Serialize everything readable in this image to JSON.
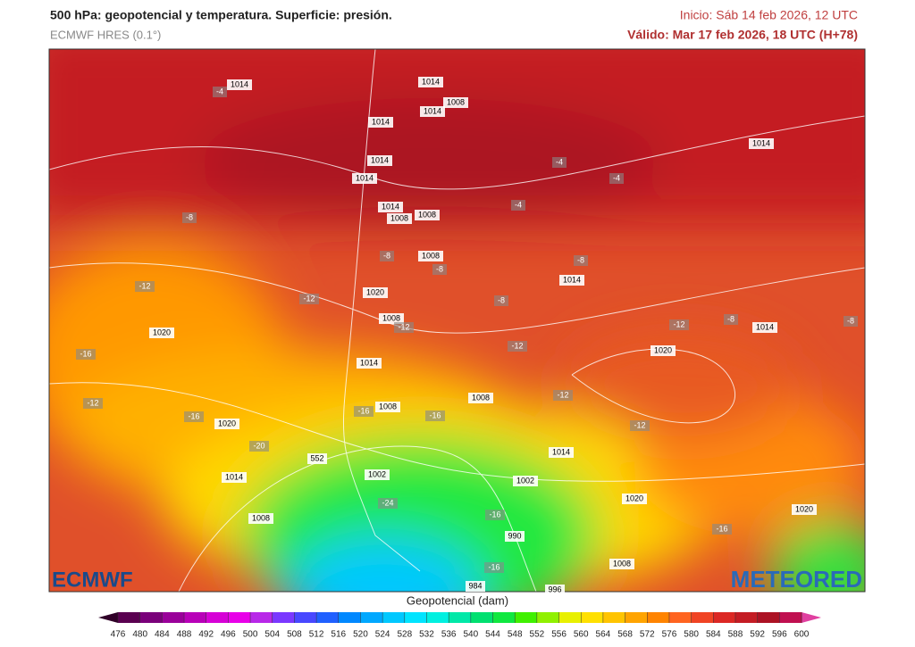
{
  "header": {
    "title": "500 hPa: geopotencial y temperatura. Superficie: presión.",
    "subtitle": "ECMWF HRES (0.1°)",
    "init": "Inicio: Sáb 14 feb 2026, 12 UTC",
    "valid": "Válido: Mar 17 feb 2026, 18 UTC (H+78)"
  },
  "map": {
    "labels": [
      "1014",
      "-4",
      "1014",
      "1014",
      "1008",
      "1014",
      "1014",
      "1014",
      "1014",
      "-4",
      "-4",
      "-4",
      "-8",
      "1014",
      "1008",
      "1008",
      "-8",
      "1008",
      "-8",
      "-8",
      "1014",
      "-12",
      "-12",
      "1020",
      "-8",
      "1008",
      "-12",
      "-12",
      "-8",
      "1014",
      "-8",
      "1020",
      "-16",
      "-12",
      "1020",
      "1014",
      "-12",
      "1008",
      "-12",
      "-16",
      "1020",
      "1008",
      "-16",
      "-16",
      "-12",
      "-20",
      "552",
      "1014",
      "1014",
      "1002",
      "1002",
      "-24",
      "1020",
      "1008",
      "-16",
      "990",
      "-16",
      "1020",
      "-16",
      "1008",
      "984",
      "996"
    ],
    "logo_left": "ECMWF",
    "logo_right": "METEORED"
  },
  "colorbar": {
    "title": "Geopotencial (dam)",
    "ticks": [
      476,
      480,
      484,
      488,
      492,
      496,
      500,
      504,
      508,
      512,
      516,
      520,
      524,
      528,
      532,
      536,
      540,
      544,
      548,
      552,
      556,
      560,
      564,
      568,
      572,
      576,
      580,
      584,
      588,
      592,
      596,
      600
    ],
    "colors": [
      "#5a0050",
      "#7a007a",
      "#9a009a",
      "#b800b8",
      "#d600d6",
      "#e800e8",
      "#b828e8",
      "#7a38ff",
      "#4848ff",
      "#2060ff",
      "#0088ff",
      "#00a8ff",
      "#00c8ff",
      "#00e4ff",
      "#00f0e0",
      "#00e8a8",
      "#00e070",
      "#10e840",
      "#40f000",
      "#90f000",
      "#e8f000",
      "#ffe000",
      "#ffc400",
      "#ffa400",
      "#ff8400",
      "#ff6420",
      "#f04424",
      "#dc2824",
      "#c41c24",
      "#ac1224",
      "#c01050"
    ]
  }
}
